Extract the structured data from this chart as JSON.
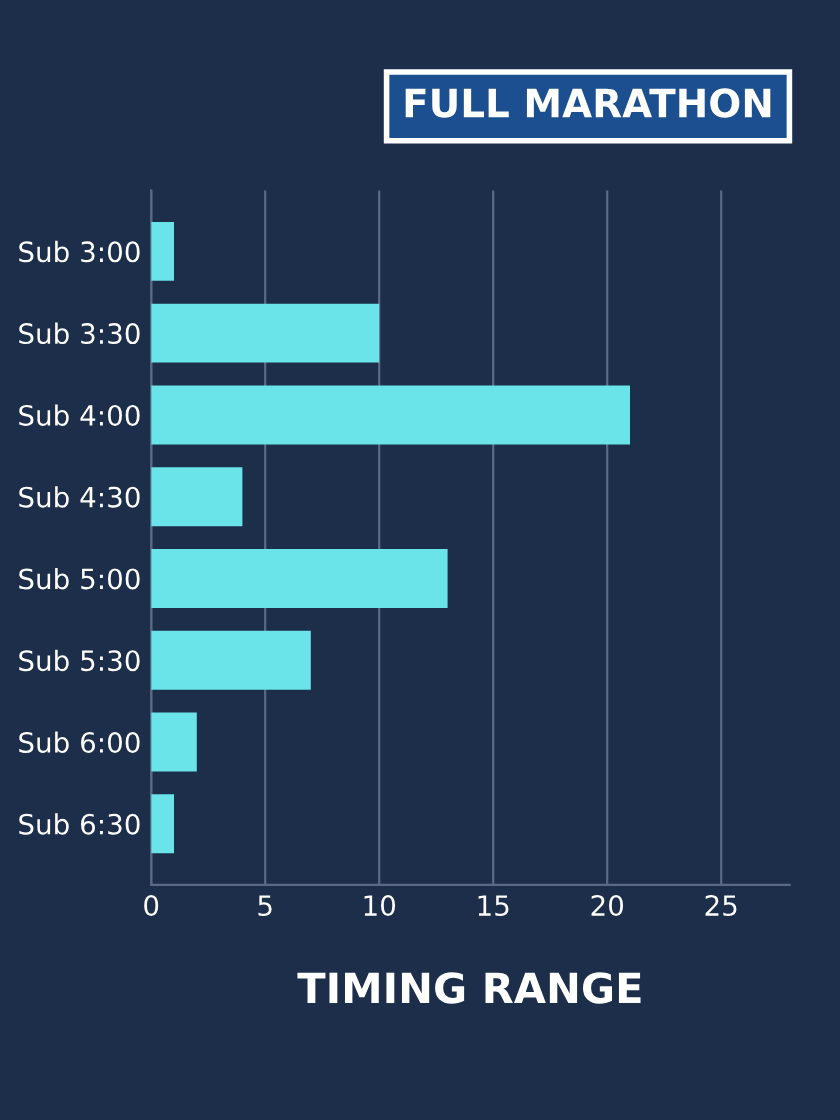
{
  "chart_data": {
    "type": "bar",
    "orientation": "horizontal",
    "title": "FULL MARATHON",
    "xlabel": "TIMING RANGE",
    "categories": [
      "Sub 3:00",
      "Sub 3:30",
      "Sub 4:00",
      "Sub 4:30",
      "Sub 5:00",
      "Sub 5:30",
      "Sub 6:00",
      "Sub 6:30"
    ],
    "values": [
      1,
      10,
      21,
      4,
      13,
      7,
      2,
      1
    ],
    "color": "#6ae4e8",
    "xlim": [
      0,
      28
    ],
    "xticks": [
      0,
      5,
      10,
      15,
      20,
      25
    ],
    "grid": "x",
    "legend": false
  }
}
